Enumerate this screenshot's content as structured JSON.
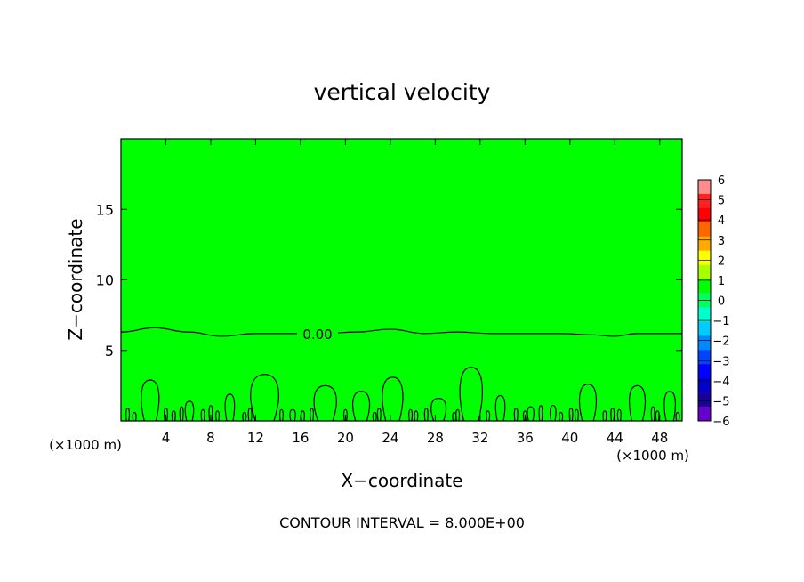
{
  "chart_data": {
    "type": "contour",
    "title": "vertical velocity",
    "xlabel": "X−coordinate",
    "ylabel": "Z−coordinate",
    "x_unit_left": "(×1000 m)",
    "x_unit_right": "(×1000 m)",
    "footnote": "CONTOUR INTERVAL = 8.000E+00",
    "contour_label": "0.00",
    "xlim": [
      0,
      50
    ],
    "ylim": [
      0,
      20
    ],
    "xticks": [
      4,
      8,
      12,
      16,
      20,
      24,
      28,
      32,
      36,
      40,
      44,
      48
    ],
    "xtick_labels": [
      "4",
      "8",
      "12",
      "16",
      "20",
      "24",
      "28",
      "32",
      "36",
      "40",
      "44",
      "48"
    ],
    "yticks": [
      5,
      10,
      15
    ],
    "ytick_labels": [
      "5",
      "10",
      "15"
    ],
    "zero_contour": {
      "value": 0.0,
      "x": [
        0,
        3,
        6,
        9,
        12,
        15,
        18,
        21,
        24,
        27,
        30,
        33,
        36,
        39,
        42,
        44,
        46,
        50
      ],
      "z": [
        6.3,
        6.6,
        6.3,
        6.0,
        6.2,
        6.2,
        6.2,
        6.3,
        6.5,
        6.2,
        6.3,
        6.2,
        6.2,
        6.2,
        6.1,
        6.0,
        6.2,
        6.2
      ]
    },
    "plumes": [
      {
        "x": 2.6,
        "half_width": 0.95,
        "top": 2.9
      },
      {
        "x": 6.1,
        "half_width": 0.45,
        "top": 1.4
      },
      {
        "x": 9.7,
        "half_width": 0.5,
        "top": 1.9
      },
      {
        "x": 12.8,
        "half_width": 1.5,
        "top": 3.3
      },
      {
        "x": 15.3,
        "half_width": 0.3,
        "top": 0.8
      },
      {
        "x": 18.2,
        "half_width": 1.2,
        "top": 2.5
      },
      {
        "x": 21.4,
        "half_width": 0.9,
        "top": 2.1
      },
      {
        "x": 24.2,
        "half_width": 1.1,
        "top": 3.1
      },
      {
        "x": 28.3,
        "half_width": 0.8,
        "top": 1.6
      },
      {
        "x": 31.2,
        "half_width": 1.2,
        "top": 3.8
      },
      {
        "x": 33.8,
        "half_width": 0.5,
        "top": 1.8
      },
      {
        "x": 36.5,
        "half_width": 0.35,
        "top": 1.0
      },
      {
        "x": 38.5,
        "half_width": 0.3,
        "top": 1.1
      },
      {
        "x": 41.6,
        "half_width": 0.9,
        "top": 2.6
      },
      {
        "x": 46.0,
        "half_width": 0.85,
        "top": 2.5
      },
      {
        "x": 48.9,
        "half_width": 0.6,
        "top": 2.1
      }
    ],
    "small_plumes_x": [
      0.6,
      1.2,
      4.0,
      4.7,
      5.4,
      7.3,
      8.0,
      8.6,
      11.0,
      11.5,
      14.3,
      16.2,
      17.0,
      20.0,
      22.6,
      23.0,
      25.8,
      26.3,
      27.2,
      29.7,
      30.0,
      32.7,
      35.2,
      36.0,
      37.4,
      39.2,
      40.1,
      40.6,
      43.1,
      43.8,
      44.4,
      47.4,
      47.8,
      49.6
    ],
    "small_plume_tops": [
      0.9,
      0.6,
      0.9,
      0.7,
      1.0,
      0.8,
      1.1,
      0.7,
      0.6,
      0.9,
      0.8,
      0.7,
      0.9,
      0.8,
      0.6,
      0.9,
      0.8,
      0.7,
      0.9,
      0.6,
      0.8,
      0.7,
      0.9,
      0.7,
      1.1,
      0.6,
      0.9,
      0.8,
      0.7,
      0.9,
      0.8,
      1.0,
      0.7,
      0.6
    ],
    "colorbar": {
      "levels": [
        6,
        5,
        4,
        3,
        2,
        1,
        0,
        -1,
        -2,
        -3,
        -4,
        -5,
        -6
      ],
      "labels": [
        "6",
        "5",
        "4",
        "3",
        "2",
        "1",
        "0",
        "−1",
        "−2",
        "−3",
        "−4",
        "−5",
        "−6"
      ],
      "colors": [
        "#ff8c8c",
        "#ff2020",
        "#ff0000",
        "#ff6600",
        "#ffaa00",
        "#ffff00",
        "#aaff00",
        "#00ff00",
        "#00ff66",
        "#00ffcc",
        "#00ccff",
        "#0088ff",
        "#0044ff",
        "#0000ff",
        "#0000cc",
        "#1a0099",
        "#6600cc"
      ]
    }
  }
}
